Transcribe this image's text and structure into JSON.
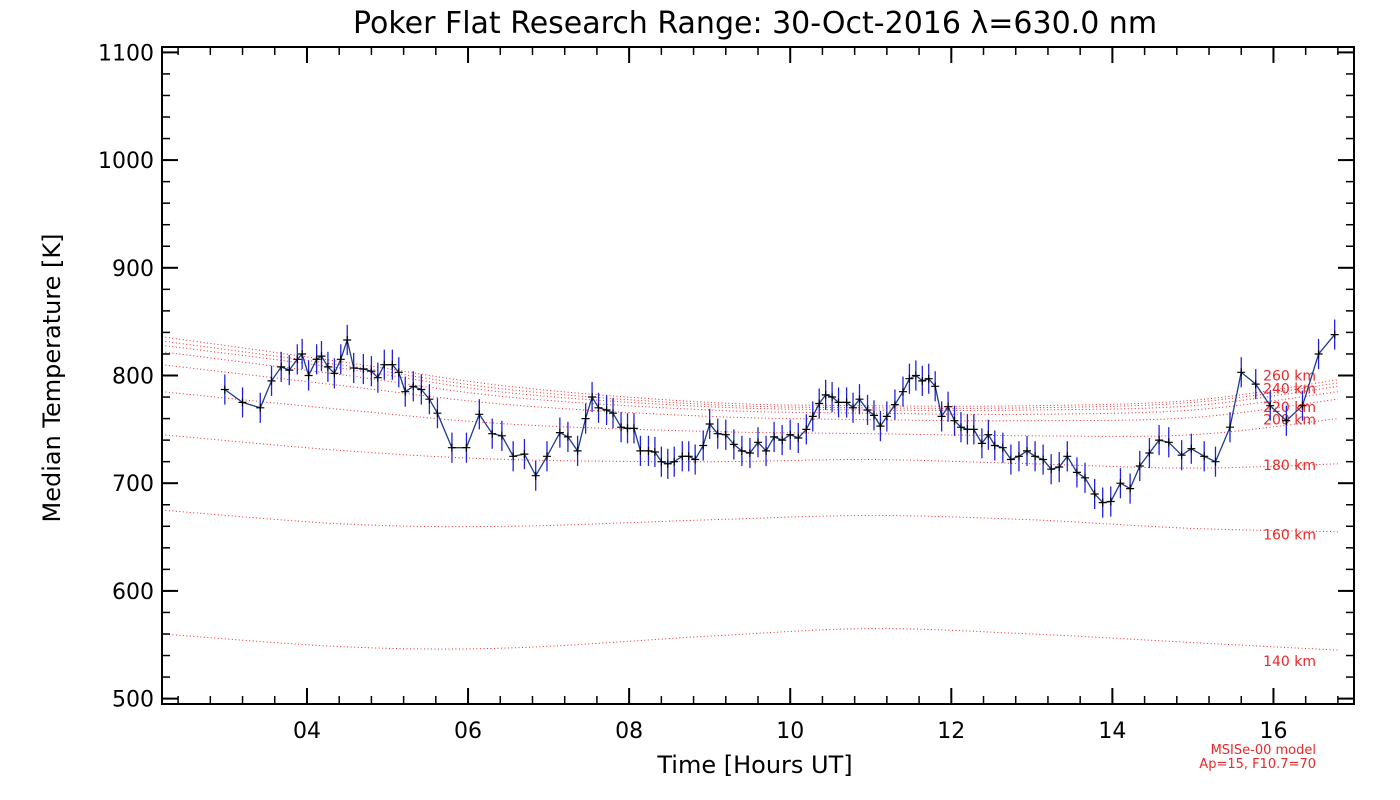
{
  "chart_data": {
    "type": "line",
    "title": "Poker Flat Research Range: 30-Oct-2016 λ=630.0 nm",
    "xlabel": "Time [Hours UT]",
    "ylabel": "Median Temperature [K]",
    "xlim": [
      2.2,
      17.0
    ],
    "ylim": [
      495,
      1105
    ],
    "x_ticks": [
      {
        "value": 4,
        "label": "04"
      },
      {
        "value": 6,
        "label": "06"
      },
      {
        "value": 8,
        "label": "08"
      },
      {
        "value": 10,
        "label": "10"
      },
      {
        "value": 12,
        "label": "12"
      },
      {
        "value": 14,
        "label": "14"
      },
      {
        "value": 16,
        "label": "16"
      }
    ],
    "y_ticks": [
      {
        "value": 500,
        "label": "500"
      },
      {
        "value": 600,
        "label": "600"
      },
      {
        "value": 700,
        "label": "700"
      },
      {
        "value": 800,
        "label": "800"
      },
      {
        "value": 900,
        "label": "900"
      },
      {
        "value": 1000,
        "label": "1000"
      },
      {
        "value": 1100,
        "label": "1100"
      }
    ],
    "grid": false,
    "colors": {
      "data_line": "#1f3b8c",
      "error_bar": "#2222dd",
      "marker": "#000000",
      "model": "#e8292b"
    },
    "series": [
      {
        "error": 14,
        "points": [
          [
            2.98,
            787
          ],
          [
            3.2,
            775
          ],
          [
            3.42,
            770
          ],
          [
            3.56,
            795
          ],
          [
            3.68,
            808
          ],
          [
            3.78,
            805
          ],
          [
            3.88,
            815
          ],
          [
            3.94,
            820
          ],
          [
            4.02,
            800
          ],
          [
            4.12,
            815
          ],
          [
            4.18,
            818
          ],
          [
            4.26,
            808
          ],
          [
            4.34,
            802
          ],
          [
            4.42,
            815
          ],
          [
            4.5,
            833
          ],
          [
            4.58,
            807
          ],
          [
            4.7,
            806
          ],
          [
            4.8,
            804
          ],
          [
            4.88,
            798
          ],
          [
            4.96,
            810
          ],
          [
            5.06,
            810
          ],
          [
            5.14,
            803
          ],
          [
            5.22,
            785
          ],
          [
            5.32,
            790
          ],
          [
            5.42,
            787
          ],
          [
            5.52,
            778
          ],
          [
            5.62,
            765
          ],
          [
            5.8,
            733
          ],
          [
            5.98,
            733
          ],
          [
            6.14,
            764
          ],
          [
            6.3,
            746
          ],
          [
            6.42,
            744
          ],
          [
            6.56,
            725
          ],
          [
            6.7,
            727
          ],
          [
            6.84,
            707
          ],
          [
            6.98,
            725
          ],
          [
            7.14,
            747
          ],
          [
            7.24,
            743
          ],
          [
            7.36,
            730
          ],
          [
            7.46,
            760
          ],
          [
            7.54,
            780
          ],
          [
            7.62,
            770
          ],
          [
            7.72,
            768
          ],
          [
            7.8,
            765
          ],
          [
            7.9,
            752
          ],
          [
            7.98,
            751
          ],
          [
            8.06,
            751
          ],
          [
            8.14,
            730
          ],
          [
            8.24,
            730
          ],
          [
            8.32,
            729
          ],
          [
            8.4,
            720
          ],
          [
            8.48,
            718
          ],
          [
            8.56,
            720
          ],
          [
            8.66,
            725
          ],
          [
            8.74,
            725
          ],
          [
            8.82,
            722
          ],
          [
            8.92,
            735
          ],
          [
            9.0,
            755
          ],
          [
            9.1,
            746
          ],
          [
            9.2,
            745
          ],
          [
            9.3,
            736
          ],
          [
            9.4,
            730
          ],
          [
            9.5,
            728
          ],
          [
            9.6,
            738
          ],
          [
            9.7,
            730
          ],
          [
            9.8,
            743
          ],
          [
            9.9,
            740
          ],
          [
            10.0,
            745
          ],
          [
            10.1,
            742
          ],
          [
            10.2,
            750
          ],
          [
            10.28,
            762
          ],
          [
            10.36,
            774
          ],
          [
            10.44,
            782
          ],
          [
            10.52,
            780
          ],
          [
            10.6,
            775
          ],
          [
            10.7,
            775
          ],
          [
            10.78,
            770
          ],
          [
            10.86,
            778
          ],
          [
            10.96,
            768
          ],
          [
            11.04,
            763
          ],
          [
            11.12,
            753
          ],
          [
            11.2,
            762
          ],
          [
            11.3,
            773
          ],
          [
            11.4,
            785
          ],
          [
            11.48,
            797
          ],
          [
            11.56,
            800
          ],
          [
            11.64,
            795
          ],
          [
            11.72,
            797
          ],
          [
            11.8,
            790
          ],
          [
            11.88,
            762
          ],
          [
            11.96,
            771
          ],
          [
            12.04,
            758
          ],
          [
            12.12,
            752
          ],
          [
            12.2,
            750
          ],
          [
            12.28,
            750
          ],
          [
            12.38,
            737
          ],
          [
            12.46,
            745
          ],
          [
            12.54,
            735
          ],
          [
            12.64,
            733
          ],
          [
            12.74,
            722
          ],
          [
            12.84,
            725
          ],
          [
            12.94,
            730
          ],
          [
            13.04,
            725
          ],
          [
            13.14,
            722
          ],
          [
            13.24,
            713
          ],
          [
            13.34,
            715
          ],
          [
            13.44,
            725
          ],
          [
            13.56,
            710
          ],
          [
            13.66,
            705
          ],
          [
            13.78,
            690
          ],
          [
            13.88,
            682
          ],
          [
            13.98,
            683
          ],
          [
            14.1,
            700
          ],
          [
            14.22,
            695
          ],
          [
            14.34,
            716
          ],
          [
            14.46,
            728
          ],
          [
            14.58,
            740
          ],
          [
            14.7,
            738
          ],
          [
            14.86,
            726
          ],
          [
            14.98,
            732
          ],
          [
            15.14,
            725
          ],
          [
            15.28,
            720
          ],
          [
            15.46,
            752
          ],
          [
            15.6,
            803
          ],
          [
            15.78,
            792
          ],
          [
            15.96,
            772
          ],
          [
            16.16,
            758
          ],
          [
            16.36,
            772
          ],
          [
            16.56,
            820
          ],
          [
            16.76,
            838
          ]
        ]
      }
    ],
    "model_curves": [
      {
        "label": "140 km",
        "values": [
          [
            2.2,
            560
          ],
          [
            4.5,
            548
          ],
          [
            6.5,
            547
          ],
          [
            9.0,
            558
          ],
          [
            11.0,
            565
          ],
          [
            13.0,
            560
          ],
          [
            15.0,
            552
          ],
          [
            16.8,
            545
          ]
        ]
      },
      {
        "label": "160 km",
        "values": [
          [
            2.2,
            675
          ],
          [
            4.5,
            662
          ],
          [
            6.5,
            660
          ],
          [
            9.0,
            666
          ],
          [
            11.0,
            670
          ],
          [
            13.0,
            666
          ],
          [
            15.0,
            658
          ],
          [
            16.8,
            655
          ]
        ]
      },
      {
        "label": "180 km",
        "values": [
          [
            2.2,
            745
          ],
          [
            4.5,
            730
          ],
          [
            6.5,
            722
          ],
          [
            9.0,
            720
          ],
          [
            11.0,
            722
          ],
          [
            13.0,
            718
          ],
          [
            15.0,
            714
          ],
          [
            16.8,
            718
          ]
        ]
      },
      {
        "label": "200 km",
        "values": [
          [
            2.2,
            785
          ],
          [
            4.5,
            768
          ],
          [
            6.5,
            755
          ],
          [
            9.0,
            748
          ],
          [
            11.0,
            746
          ],
          [
            13.0,
            744
          ],
          [
            15.0,
            745
          ],
          [
            16.8,
            760
          ]
        ]
      },
      {
        "label": "220 km",
        "values": [
          [
            2.2,
            810
          ],
          [
            4.5,
            790
          ],
          [
            6.5,
            773
          ],
          [
            9.0,
            762
          ],
          [
            11.0,
            759
          ],
          [
            13.0,
            758
          ],
          [
            15.0,
            761
          ],
          [
            16.8,
            778
          ]
        ]
      },
      {
        "label": "240 km",
        "values": [
          [
            2.2,
            822
          ],
          [
            4.5,
            800
          ],
          [
            6.5,
            780
          ],
          [
            9.0,
            768
          ],
          [
            11.0,
            765
          ],
          [
            13.0,
            764
          ],
          [
            15.0,
            768
          ],
          [
            16.8,
            785
          ]
        ]
      },
      {
        "label": "260 km",
        "values": [
          [
            2.2,
            828
          ],
          [
            4.5,
            806
          ],
          [
            6.5,
            784
          ],
          [
            9.0,
            771
          ],
          [
            11.0,
            768
          ],
          [
            13.0,
            768
          ],
          [
            15.0,
            772
          ],
          [
            16.8,
            790
          ]
        ]
      },
      {
        "label": "",
        "values": [
          [
            2.2,
            832
          ],
          [
            4.5,
            809
          ],
          [
            6.5,
            787
          ],
          [
            9.0,
            773
          ],
          [
            11.0,
            770
          ],
          [
            13.0,
            770
          ],
          [
            15.0,
            775
          ],
          [
            16.8,
            793
          ]
        ]
      },
      {
        "label": "",
        "values": [
          [
            2.2,
            836
          ],
          [
            4.5,
            812
          ],
          [
            6.5,
            790
          ],
          [
            9.0,
            775
          ],
          [
            11.0,
            772
          ],
          [
            13.0,
            772
          ],
          [
            15.0,
            777
          ],
          [
            16.8,
            796
          ]
        ]
      }
    ],
    "model_note": [
      "MSISe-00 model",
      "Ap=15, F10.7=70"
    ]
  }
}
